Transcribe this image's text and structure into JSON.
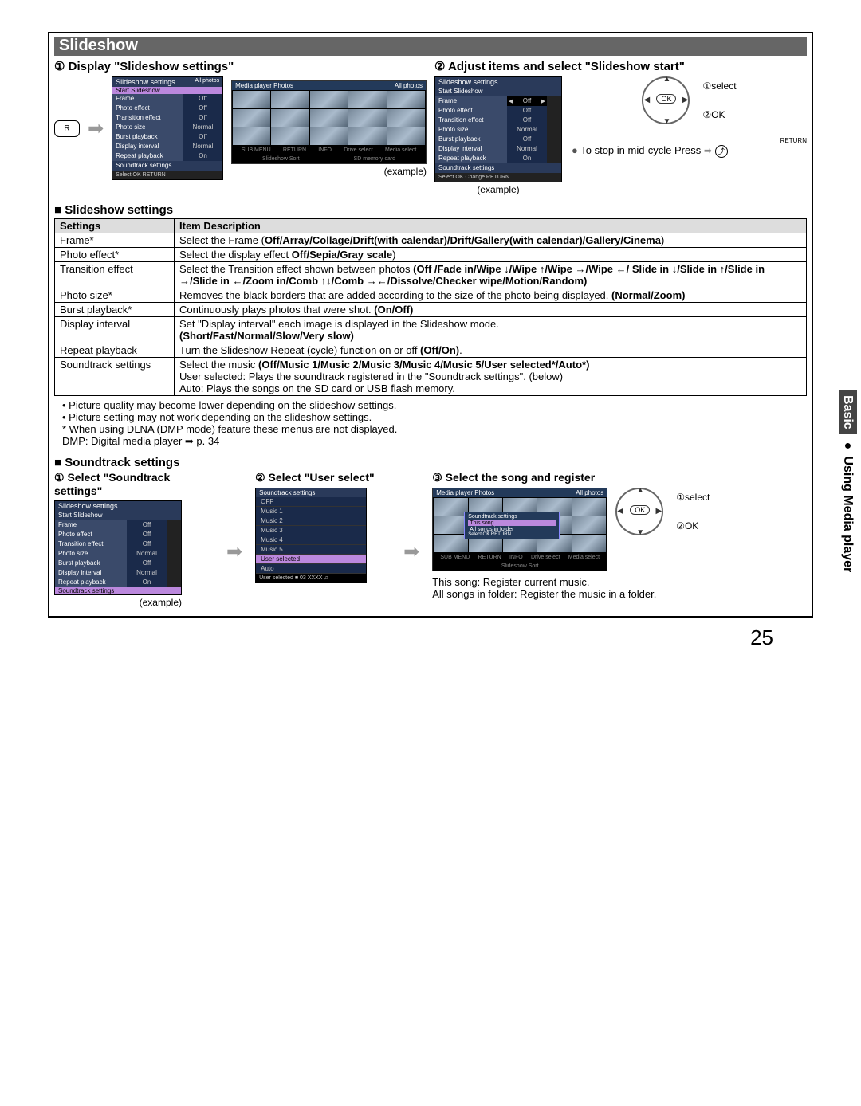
{
  "header": {
    "title": "Slideshow"
  },
  "step1": {
    "head": "① Display \"Slideshow settings\"",
    "example": "(example)",
    "osd_title": "Slideshow settings",
    "osd_right": "All photos",
    "start": "Start Slideshow",
    "rows": [
      {
        "l": "Frame",
        "v": "Off"
      },
      {
        "l": "Photo effect",
        "v": "Off"
      },
      {
        "l": "Transition effect",
        "v": "Off"
      },
      {
        "l": "Photo size",
        "v": "Normal"
      },
      {
        "l": "Burst playback",
        "v": "Off"
      },
      {
        "l": "Display interval",
        "v": "Normal"
      },
      {
        "l": "Repeat playback",
        "v": "On"
      }
    ],
    "footer": "Soundtrack settings",
    "hint": "Select  OK  RETURN",
    "media_title": "Media player  Photos",
    "media_right": "All photos",
    "media_foot": [
      "SUB MENU",
      "RETURN",
      "INFO",
      "Drive select",
      "Media select"
    ],
    "media_foot2": "Slideshow   Sort",
    "sd": "SD memory card",
    "r": "R"
  },
  "step2": {
    "head": "② Adjust items and select \"Slideshow start\"",
    "example": "(example)",
    "sel": "①select",
    "ok": "②OK",
    "stop": "To stop in mid-cycle Press",
    "return": "RETURN",
    "osd_title": "Slideshow settings",
    "start": "Start Slideshow",
    "rows": [
      {
        "l": "Frame",
        "v": "Off"
      },
      {
        "l": "Photo effect",
        "v": "Off"
      },
      {
        "l": "Transition effect",
        "v": "Off"
      },
      {
        "l": "Photo size",
        "v": "Normal"
      },
      {
        "l": "Burst playback",
        "v": "Off"
      },
      {
        "l": "Display interval",
        "v": "Normal"
      },
      {
        "l": "Repeat playback",
        "v": "On"
      }
    ],
    "footer": "Soundtrack settings",
    "hint": "Select  OK  Change  RETURN"
  },
  "settings_head": "Slideshow settings",
  "table": {
    "h1": "Settings",
    "h2": "Item Description",
    "rows": [
      {
        "s": "Frame*",
        "d": "Select the Frame (<b>Off/Array/Collage/Drift(with calendar)/Drift/Gallery(with calendar)/Gallery/Cinema</b>)"
      },
      {
        "s": "Photo effect*",
        "d": "Select the display effect <b>Off/Sepia/Gray scale</b>)"
      },
      {
        "s": "Transition effect",
        "d": "Select the Transition effect shown between photos <b>(Off /Fade in/Wipe ↓/Wipe ↑/Wipe →/Wipe ←/ Slide in ↓/Slide in ↑/Slide in →/Slide in ←/Zoom in/Comb ↑↓/Comb →←/Dissolve/Checker wipe/Motion/Random)</b>"
      },
      {
        "s": "Photo size*",
        "d": "Removes the black borders that are added according to the size of the photo being displayed. <b>(Normal/Zoom)</b>"
      },
      {
        "s": "Burst playback*",
        "d": "Continuously plays photos that were shot. <b>(On/Off)</b>"
      },
      {
        "s": "Display interval",
        "d": "Set \"Display interval\" each image is displayed in the Slideshow mode.<br><b>(Short/Fast/Normal/Slow/Very slow)</b>"
      },
      {
        "s": "Repeat playback",
        "d": "Turn the Slideshow Repeat (cycle) function on or off <b>(Off/On)</b>."
      },
      {
        "s": "Soundtrack settings",
        "d": "Select the music <b>(Off/Music 1/Music 2/Music 3/Music 4/Music 5/User selected*/Auto*)</b><br>User selected: Plays the soundtrack registered in the \"Soundtrack settings\". (below)<br>Auto: Plays the songs on the SD card or USB flash memory."
      }
    ]
  },
  "notes": [
    "• Picture quality may become lower depending on the slideshow settings.",
    "• Picture setting may not work depending on the slideshow settings.",
    "* When using DLNA (DMP mode) feature these menus are not displayed.",
    "  DMP: Digital media player ➡ p. 34"
  ],
  "soundtrack_head": "Soundtrack settings",
  "st1": {
    "head": "① Select \"Soundtrack settings\"",
    "example": "(example)"
  },
  "st2": {
    "head": "② Select \"User select\"",
    "title": "Soundtrack settings",
    "items": [
      "OFF",
      "Music 1",
      "Music 2",
      "Music 3",
      "Music 4",
      "Music 5",
      "User selected",
      "Auto"
    ],
    "footer": "User selected  ■ 03 XXXX  ♫"
  },
  "st3": {
    "head": "③ Select the song and register",
    "sel": "①select",
    "ok": "②OK",
    "popup_title": "Soundtrack settings",
    "popup_items": [
      "This song",
      "All songs in folder"
    ],
    "popup_hint": "Select  OK  RETURN",
    "note1": "This song: Register current music.",
    "note2": "All songs in folder: Register the music in a folder.",
    "media_title": "Media player  Photos",
    "media_right": "All photos"
  },
  "side": {
    "dark": "Basic",
    "light": "● Using Media player"
  },
  "page": "25"
}
